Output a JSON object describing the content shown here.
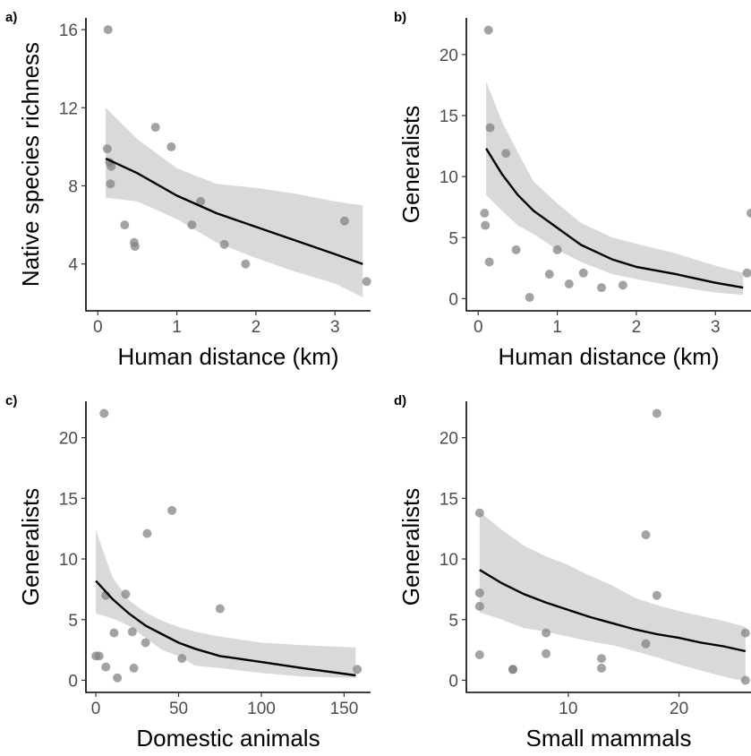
{
  "colors": {
    "point": "#7f7f7f",
    "band": "#d9d9d9",
    "line": "#000000",
    "axis": "#000000",
    "tick_text": "#4d4d4d"
  },
  "chart_data": [
    {
      "type": "scatter",
      "panel_label": "a)",
      "xlabel": "Human distance (km)",
      "ylabel": "Native species richness",
      "xlim": [
        -0.15,
        3.45
      ],
      "ylim": [
        1.6,
        16.6
      ],
      "xticks": [
        0,
        1,
        2,
        3
      ],
      "yticks": [
        4,
        8,
        12,
        16
      ],
      "grid": false,
      "series": [
        {
          "kind": "points",
          "x": [
            0.13,
            0.12,
            0.15,
            0.17,
            0.16,
            0.34,
            0.46,
            0.47,
            0.73,
            0.93,
            1.19,
            1.3,
            1.6,
            1.87,
            3.12,
            3.4
          ],
          "y": [
            16.0,
            9.9,
            9.2,
            9.0,
            8.1,
            6.0,
            5.1,
            4.9,
            11.0,
            10.0,
            6.0,
            7.2,
            5.0,
            4.0,
            6.2,
            3.1
          ]
        },
        {
          "kind": "fit",
          "x": [
            0.1,
            0.5,
            1.0,
            1.5,
            2.0,
            2.5,
            3.0,
            3.35
          ],
          "y": [
            9.4,
            8.65,
            7.5,
            6.6,
            5.9,
            5.2,
            4.5,
            4.0
          ]
        },
        {
          "kind": "ci",
          "x": [
            0.1,
            0.5,
            1.0,
            1.5,
            2.0,
            2.5,
            3.0,
            3.35
          ],
          "lower": [
            7.4,
            7.2,
            6.3,
            5.1,
            4.3,
            3.6,
            3.0,
            2.3
          ],
          "upper": [
            12.0,
            10.4,
            8.9,
            8.1,
            7.9,
            7.6,
            7.2,
            7.0
          ]
        }
      ]
    },
    {
      "type": "scatter",
      "panel_label": "b)",
      "xlabel": "Human distance (km)",
      "ylabel": "Generalists",
      "xlim": [
        -0.15,
        3.45
      ],
      "ylim": [
        -1.0,
        23.0
      ],
      "xticks": [
        0,
        1,
        2,
        3
      ],
      "yticks": [
        0,
        5,
        10,
        15,
        20
      ],
      "grid": false,
      "series": [
        {
          "kind": "points",
          "x": [
            0.13,
            0.15,
            0.08,
            0.09,
            0.14,
            0.35,
            0.48,
            0.65,
            0.9,
            1.0,
            1.15,
            1.33,
            1.56,
            1.83,
            3.4,
            3.45
          ],
          "y": [
            22.0,
            14.0,
            7.0,
            6.0,
            3.0,
            11.9,
            4.0,
            0.1,
            2.0,
            4.0,
            1.2,
            2.1,
            0.9,
            1.1,
            2.1,
            7.0
          ]
        },
        {
          "kind": "fit",
          "x": [
            0.1,
            0.3,
            0.5,
            0.7,
            1.0,
            1.3,
            1.7,
            2.0,
            2.5,
            3.0,
            3.35
          ],
          "y": [
            12.3,
            10.2,
            8.5,
            7.2,
            5.8,
            4.4,
            3.2,
            2.6,
            2.0,
            1.3,
            0.9
          ]
        },
        {
          "kind": "ci",
          "x": [
            0.1,
            0.3,
            0.5,
            0.7,
            1.0,
            1.3,
            1.7,
            2.0,
            2.5,
            3.0,
            3.35
          ],
          "lower": [
            8.5,
            7.2,
            6.0,
            5.3,
            4.0,
            3.0,
            2.0,
            1.6,
            1.0,
            0.5,
            0.3
          ],
          "upper": [
            17.8,
            14.5,
            12.0,
            9.6,
            7.8,
            6.2,
            5.0,
            4.5,
            3.7,
            2.7,
            2.1
          ]
        }
      ]
    },
    {
      "type": "scatter",
      "panel_label": "c)",
      "xlabel": "Domestic animals",
      "ylabel": "Generalists",
      "xlim": [
        -6,
        166
      ],
      "ylim": [
        -1.0,
        23.0
      ],
      "xticks": [
        0,
        50,
        100,
        150
      ],
      "yticks": [
        0,
        5,
        10,
        15,
        20
      ],
      "grid": false,
      "series": [
        {
          "kind": "points",
          "x": [
            0,
            2,
            5,
            6,
            6,
            11,
            13,
            18,
            22,
            23,
            30,
            31,
            46,
            52,
            75,
            158
          ],
          "y": [
            2.0,
            2.0,
            22.0,
            7.0,
            1.1,
            3.9,
            0.2,
            7.1,
            4.0,
            1.0,
            3.1,
            12.1,
            14.0,
            1.8,
            5.9,
            0.9
          ]
        },
        {
          "kind": "fit",
          "x": [
            0,
            10,
            20,
            30,
            40,
            50,
            60,
            75,
            100,
            125,
            157
          ],
          "y": [
            8.2,
            6.7,
            5.5,
            4.5,
            3.8,
            3.1,
            2.6,
            2.0,
            1.5,
            1.0,
            0.4
          ]
        },
        {
          "kind": "ci",
          "x": [
            0,
            10,
            20,
            30,
            40,
            50,
            60,
            75,
            100,
            125,
            157
          ],
          "lower": [
            5.5,
            5.1,
            4.5,
            3.5,
            2.5,
            2.0,
            1.2,
            1.0,
            0.6,
            0.3,
            0.2
          ],
          "upper": [
            12.4,
            8.5,
            6.6,
            5.6,
            4.9,
            4.4,
            4.0,
            3.6,
            3.1,
            2.9,
            2.7
          ]
        }
      ]
    },
    {
      "type": "scatter",
      "panel_label": "d)",
      "xlabel": "Small mammals",
      "ylabel": "Generalists",
      "xlim": [
        0.8,
        26.5
      ],
      "ylim": [
        -1.0,
        23.0
      ],
      "xticks": [
        10,
        20
      ],
      "yticks": [
        0,
        5,
        10,
        15,
        20
      ],
      "grid": false,
      "series": [
        {
          "kind": "points",
          "x": [
            2,
            2,
            2,
            2,
            5,
            5,
            8,
            8,
            13,
            13,
            17,
            17,
            18,
            18,
            26,
            26
          ],
          "y": [
            13.8,
            7.2,
            6.1,
            2.1,
            0.9,
            0.9,
            3.9,
            2.2,
            1.8,
            1.0,
            3.0,
            12.0,
            22.0,
            7.0,
            3.9,
            0.0
          ]
        },
        {
          "kind": "fit",
          "x": [
            2,
            4,
            6,
            8,
            10,
            12,
            14,
            16,
            18,
            20,
            22,
            24,
            26
          ],
          "y": [
            9.1,
            8.0,
            7.1,
            6.4,
            5.8,
            5.2,
            4.7,
            4.2,
            3.8,
            3.5,
            3.1,
            2.8,
            2.4
          ]
        },
        {
          "kind": "ci",
          "x": [
            2,
            4,
            6,
            8,
            10,
            12,
            14,
            16,
            18,
            20,
            22,
            24,
            26
          ],
          "lower": [
            5.6,
            5.0,
            4.3,
            4.0,
            3.6,
            3.2,
            2.9,
            2.4,
            1.9,
            1.3,
            0.8,
            0.3,
            -0.1
          ],
          "upper": [
            13.9,
            12.4,
            11.1,
            10.2,
            9.5,
            8.6,
            7.8,
            6.8,
            6.2,
            5.7,
            5.3,
            4.9,
            4.4
          ]
        }
      ]
    }
  ]
}
